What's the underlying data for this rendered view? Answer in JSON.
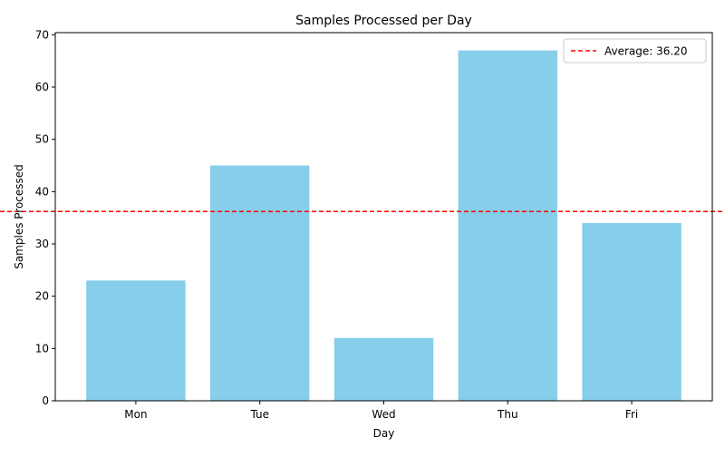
{
  "chart_data": {
    "type": "bar",
    "title": "Samples Processed per Day",
    "xlabel": "Day",
    "ylabel": "Samples Processed",
    "categories": [
      "Mon",
      "Tue",
      "Wed",
      "Thu",
      "Fri"
    ],
    "values": [
      23,
      45,
      12,
      67,
      34
    ],
    "ylim": [
      0,
      70.4
    ],
    "yticks": [
      "0",
      "10",
      "20",
      "30",
      "40",
      "50",
      "60",
      "70"
    ],
    "bar_color": "#87ceeb",
    "average": {
      "value": 36.2,
      "label": "Average: 36.20",
      "color": "#ff0000",
      "style": "dashed"
    },
    "legend_position": "top-right",
    "grid": false
  }
}
